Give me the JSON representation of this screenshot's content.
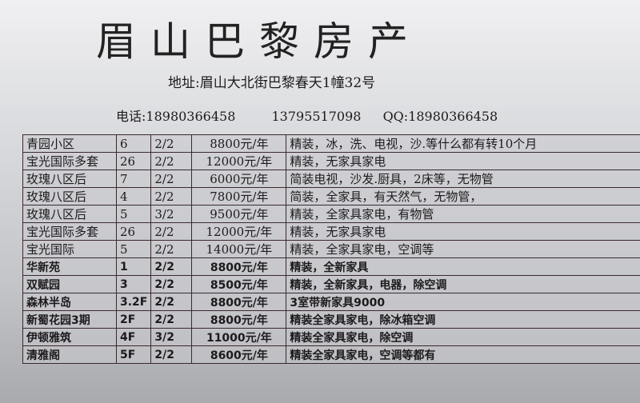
{
  "title": "眉山巴黎房产",
  "address": "地址:眉山大北街巴黎春天1幢32号",
  "contact": {
    "phone_label": "电话:",
    "phone1": "18980366458",
    "phone2": "13795517098",
    "qq": "QQ:18980366458"
  },
  "rows": [
    {
      "name": "青园小区",
      "floor": "6",
      "layout": "2/2",
      "price": "8800元/年",
      "desc": "精装，冰，洗、电视，沙.等什么都有转10个月"
    },
    {
      "name": "宝光国际多套",
      "floor": "26",
      "layout": "2/2",
      "price": "12000元/年",
      "desc": "精装，无家具家电"
    },
    {
      "name": "玫瑰八区后",
      "floor": "7",
      "layout": "2/2",
      "price": "6000元/年",
      "desc": "简装电视，沙发.厨具，2床等，无物管"
    },
    {
      "name": "玫瑰八区后",
      "floor": "4",
      "layout": "2/2",
      "price": "7800元/年",
      "desc": "简装，全家具，有天然气，无物管，"
    },
    {
      "name": "玫瑰八区后",
      "floor": "5",
      "layout": "3/2",
      "price": "9500元/年",
      "desc": "精装，全家具家电，有物管"
    },
    {
      "name": "宝光国际多套",
      "floor": "26",
      "layout": "2/2",
      "price": "12000元/年",
      "desc": "精装，无家具家电"
    },
    {
      "name": "宝光国际",
      "floor": "5",
      "layout": "2/2",
      "price": "14000元/年",
      "desc": "精装，全家具家电，空调等"
    },
    {
      "name": "华新苑",
      "floor": "1",
      "layout": "2/2",
      "price": "8800元/年",
      "desc": "精装，全新家具"
    },
    {
      "name": "双赋园",
      "floor": "3",
      "layout": "2/2",
      "price": "8500元/年",
      "desc": "精装，全新家具，电器，除空调"
    },
    {
      "name": "森林半岛",
      "floor": "3.2F",
      "layout": "2/2",
      "price": "8800元/年",
      "desc": "3室带新家具9000"
    },
    {
      "name": "新蜀花园3期",
      "floor": "2F",
      "layout": "2/2",
      "price": "8800元/年",
      "desc": "精装全家具家电，除冰箱空调"
    },
    {
      "name": "伊顿雅筑",
      "floor": "4F",
      "layout": "3/2",
      "price": "11000元/年",
      "desc": "精装全家具家电，除空调"
    },
    {
      "name": "清雅阁",
      "floor": "5F",
      "layout": "2/2",
      "price": "8600元/年",
      "desc": "精装全家具家电，空调等都有"
    }
  ]
}
